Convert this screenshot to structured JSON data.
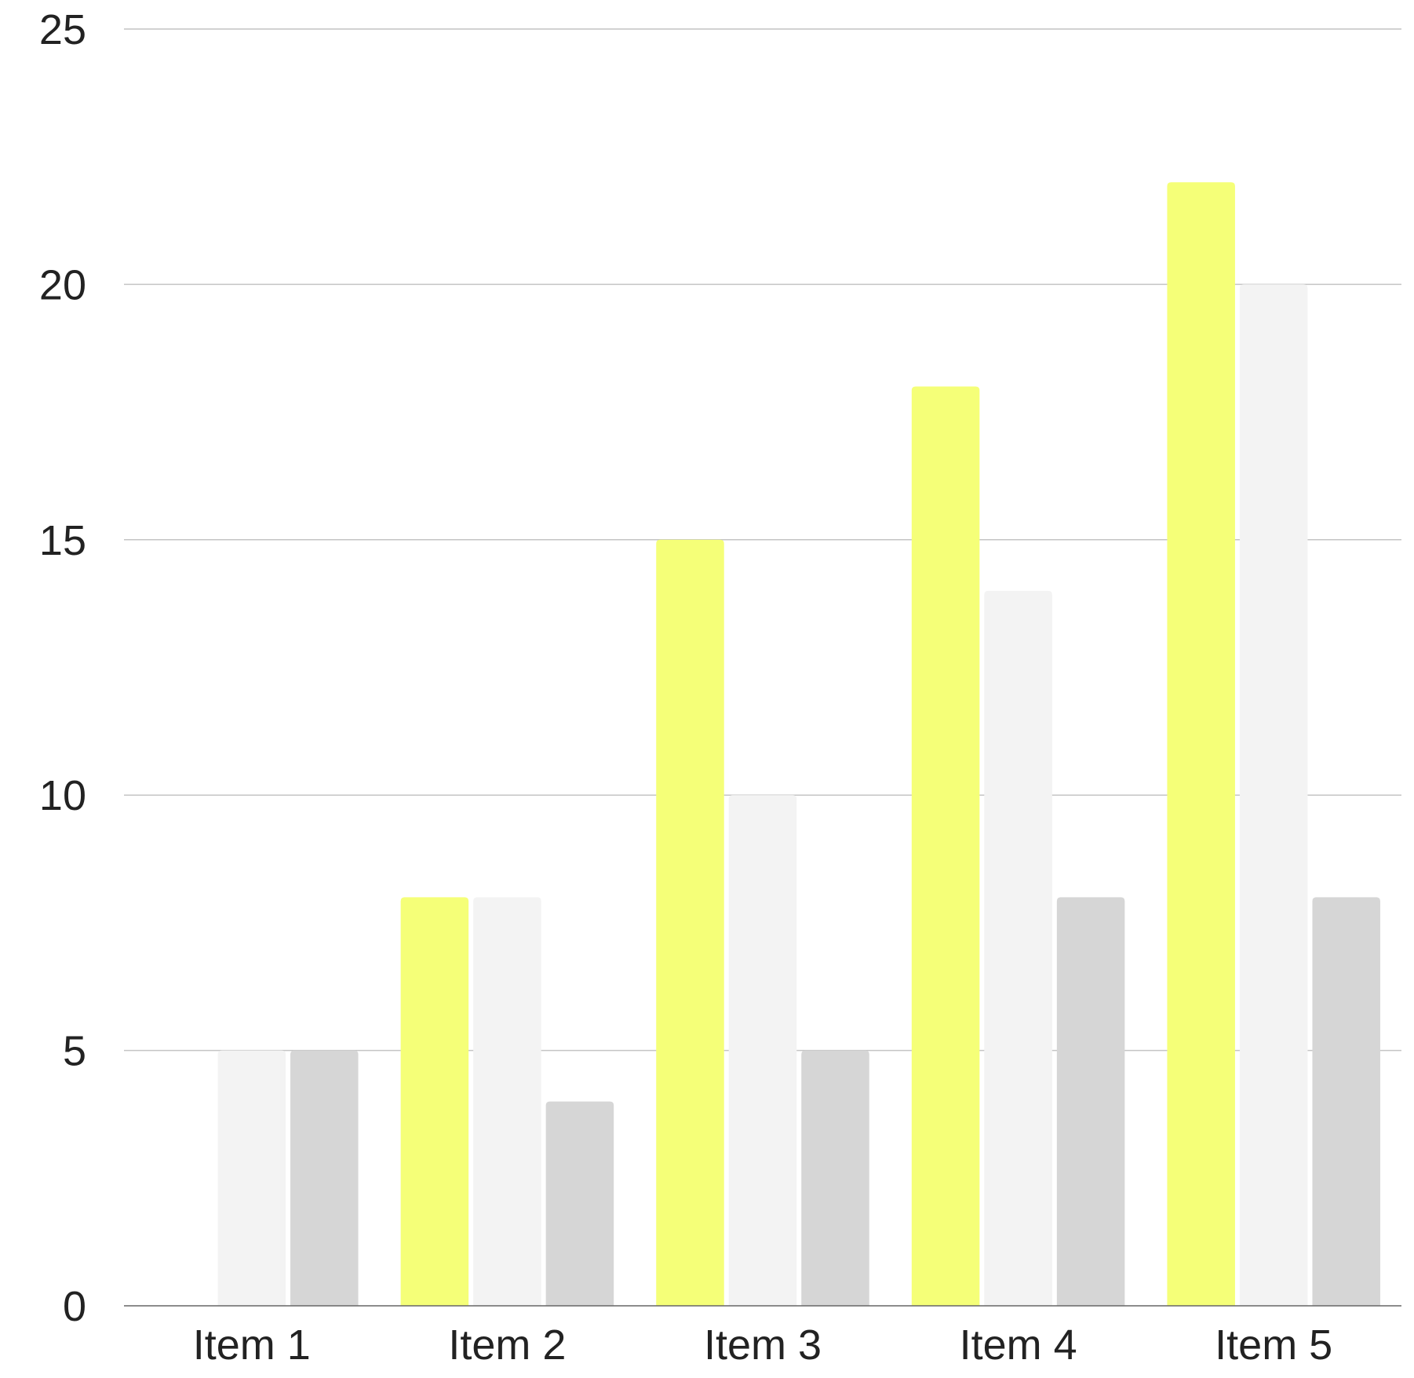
{
  "chart_data": {
    "type": "bar",
    "title": "",
    "xlabel": "",
    "ylabel": "",
    "categories": [
      "Item 1",
      "Item 2",
      "Item 3",
      "Item 4",
      "Item 5"
    ],
    "series": [
      {
        "color": "#f5ff78",
        "values": [
          0,
          8,
          15,
          18,
          22
        ]
      },
      {
        "color": "#f3f3f3",
        "values": [
          5,
          8,
          10,
          14,
          20
        ]
      },
      {
        "color": "#d6d6d6",
        "values": [
          5,
          4,
          5,
          8,
          8
        ]
      }
    ],
    "ylim": [
      0,
      25
    ],
    "yticks": [
      0,
      5,
      10,
      15,
      20,
      25
    ],
    "grid": true,
    "legend": "none"
  }
}
